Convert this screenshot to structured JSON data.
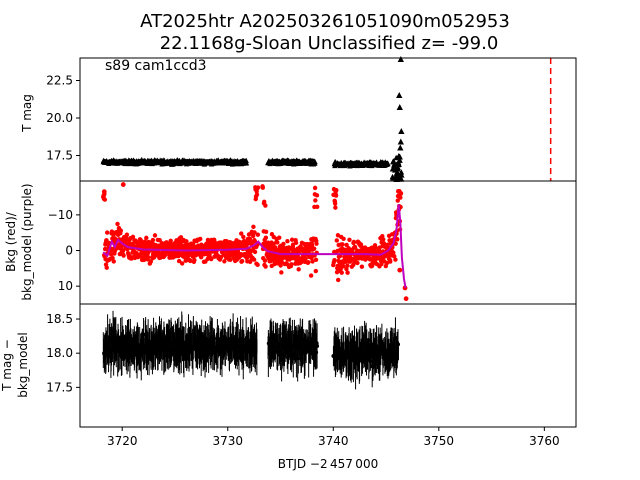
{
  "figure": {
    "title_line1": "AT2025htr  A202503261051090m052953",
    "title_line2": "22.1168g-Sloan Unclassified z= -99.0",
    "xlabel": "BTJD −2 457 000",
    "annotation": "s89 cam1ccd3"
  },
  "chart_data": [
    {
      "type": "scatter",
      "panel": "top",
      "ylabel": "T mag",
      "ylim": [
        24.0,
        15.8
      ],
      "yticks": [
        17.5,
        20.0,
        22.5
      ],
      "ytick_labels": [
        "17.5",
        "20.0",
        "22.5"
      ],
      "xlim": [
        3716.0,
        3763.0
      ],
      "marker": "triangle",
      "color": "#000000",
      "segments": [
        {
          "x": [
            3718.2,
            3731.8
          ],
          "y_center": 17.05,
          "spread": 0.35
        },
        {
          "x": [
            3733.8,
            3738.3
          ],
          "y_center": 17.05,
          "spread": 0.35
        },
        {
          "x": [
            3740.1,
            3745.2
          ],
          "y_center": 16.9,
          "spread": 0.4
        }
      ],
      "burst_points": [
        {
          "x": 3745.8,
          "y": 16.6
        },
        {
          "x": 3746.0,
          "y": 15.9
        },
        {
          "x": 3746.1,
          "y": 16.3
        },
        {
          "x": 3746.2,
          "y": 16.9
        },
        {
          "x": 3746.3,
          "y": 17.4
        },
        {
          "x": 3746.35,
          "y": 18.0
        },
        {
          "x": 3746.4,
          "y": 18.4
        },
        {
          "x": 3746.45,
          "y": 19.1
        },
        {
          "x": 3746.3,
          "y": 20.7
        },
        {
          "x": 3746.25,
          "y": 21.5
        },
        {
          "x": 3746.4,
          "y": 23.9
        }
      ],
      "vline": {
        "x": 3760.6,
        "color": "#ff0000",
        "style": "dashed"
      }
    },
    {
      "type": "scatter",
      "panel": "middle",
      "ylabel_line1": "Bkg (red)/",
      "ylabel_line2": "bkg_model (purple)",
      "ylim": [
        -19.5,
        15.0
      ],
      "yticks": [
        -10,
        0,
        10
      ],
      "ytick_labels": [
        "−10",
        "0",
        "10"
      ],
      "series": [
        {
          "role": "bkg",
          "color": "#ff0000",
          "marker": "circle"
        },
        {
          "role": "bkg_model",
          "color": "#bf00bf",
          "marker": "line"
        }
      ],
      "model_points": [
        [
          3718.2,
          0.5
        ],
        [
          3718.6,
          1.5
        ],
        [
          3719.0,
          -2.5
        ],
        [
          3719.3,
          -1.0
        ],
        [
          3719.6,
          -3.0
        ],
        [
          3720.0,
          -2.0
        ],
        [
          3720.5,
          -1.0
        ],
        [
          3722.0,
          -0.3
        ],
        [
          3726.0,
          0.0
        ],
        [
          3730.0,
          -0.2
        ],
        [
          3731.8,
          -0.5
        ],
        [
          3732.5,
          -1.5
        ],
        [
          3732.9,
          -2.5
        ],
        [
          3733.3,
          -1.0
        ],
        [
          3733.8,
          0.2
        ],
        [
          3735.0,
          1.0
        ],
        [
          3738.3,
          1.0
        ],
        [
          3740.1,
          1.0
        ],
        [
          3743.0,
          1.0
        ],
        [
          3744.5,
          1.2
        ],
        [
          3745.2,
          0.0
        ],
        [
          3745.7,
          -2.0
        ],
        [
          3746.0,
          -6.0
        ],
        [
          3746.2,
          -13.0
        ],
        [
          3746.35,
          -8.0
        ],
        [
          3746.5,
          2.0
        ],
        [
          3746.7,
          8.0
        ],
        [
          3746.85,
          10.5
        ]
      ]
    },
    {
      "type": "scatter",
      "panel": "bottom",
      "ylabel_line1": "T mag −",
      "ylabel_line2": "bkg_model",
      "ylim": [
        18.72,
        16.92
      ],
      "yticks": [
        17.5,
        18.0,
        18.5
      ],
      "ytick_labels": [
        "17.5",
        "18.0",
        "18.5"
      ],
      "marker": "circle",
      "errorbars": true,
      "color": "#000000",
      "segments": [
        {
          "x": [
            3718.2,
            3732.8
          ],
          "y_center": 18.1,
          "spread": 0.45
        },
        {
          "x": [
            3733.8,
            3738.5
          ],
          "y_center": 18.1,
          "spread": 0.45
        },
        {
          "x": [
            3740.0,
            3746.2
          ],
          "y_center": 18.0,
          "spread": 0.45
        }
      ],
      "xticks": [
        3720,
        3730,
        3740,
        3750,
        3760
      ],
      "xtick_labels": [
        "3720",
        "3730",
        "3740",
        "3750",
        "3760"
      ]
    }
  ]
}
